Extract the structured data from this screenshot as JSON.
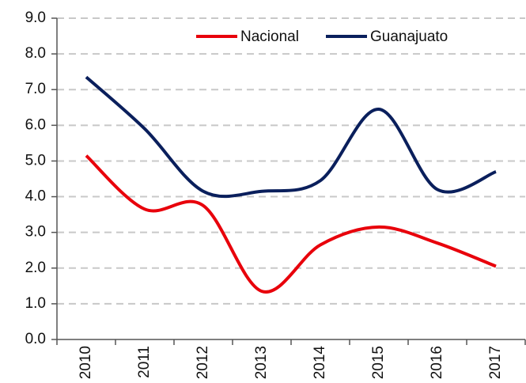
{
  "chart_data": {
    "type": "line",
    "categories": [
      "2010",
      "2011",
      "2012",
      "2013",
      "2014",
      "2015",
      "2016",
      "2017"
    ],
    "series": [
      {
        "name": "Nacional",
        "color": "#e8000b",
        "values": [
          5.15,
          3.65,
          3.75,
          1.35,
          2.65,
          3.15,
          2.7,
          2.05
        ]
      },
      {
        "name": "Guanajuato",
        "color": "#0a1f5c",
        "values": [
          7.35,
          5.9,
          4.15,
          4.15,
          4.45,
          6.45,
          4.2,
          4.7
        ]
      }
    ],
    "ylim": [
      0,
      9
    ],
    "yticks": [
      {
        "value": 0,
        "label": "0.0"
      },
      {
        "value": 1,
        "label": "1.0"
      },
      {
        "value": 2,
        "label": "2.0"
      },
      {
        "value": 3,
        "label": "3.0"
      },
      {
        "value": 4,
        "label": "4.0"
      },
      {
        "value": 5,
        "label": "5.0"
      },
      {
        "value": 6,
        "label": "6.0"
      },
      {
        "value": 7,
        "label": "7.0"
      },
      {
        "value": 8,
        "label": "8.0"
      },
      {
        "value": 9,
        "label": "9.0"
      }
    ],
    "grid": true,
    "legend": "top"
  }
}
